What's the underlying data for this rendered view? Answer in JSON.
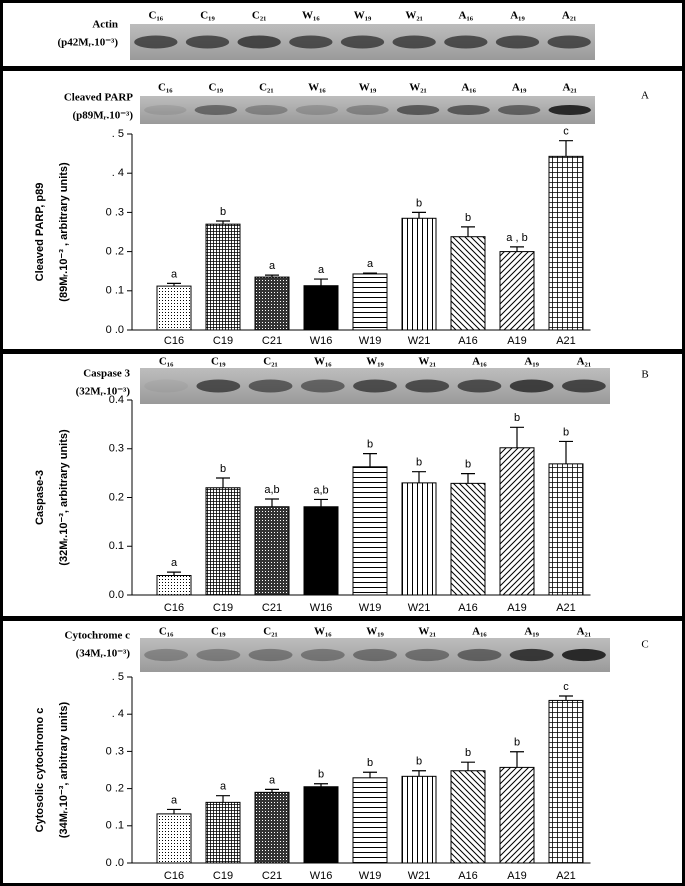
{
  "actin": {
    "label": "Actin",
    "sublabel": "(p42Mᵣ.10⁻³)",
    "lanes": [
      "C₁₆",
      "C₁₉",
      "C₂₁",
      "W₁₆",
      "W₁₉",
      "W₂₁",
      "A₁₆",
      "A₁₉",
      "A₂₁"
    ]
  },
  "chart_data": [
    {
      "type": "bar",
      "panel": "A",
      "blot": {
        "label": "Cleaved PARP",
        "sublabel": "(p89Mᵣ.10⁻³)",
        "lanes": [
          "C₁₆",
          "C₁₉",
          "C₂₁",
          "W₁₆",
          "W₁₉",
          "W₂₁",
          "A₁₆",
          "A₁₉",
          "A₂₁"
        ]
      },
      "ylabel": [
        "Cleaved PARP, p89",
        "(89Mᵣ.10⁻³ , arbitrary units)"
      ],
      "categories": [
        "C16",
        "C19",
        "C21",
        "W16",
        "W19",
        "W21",
        "A16",
        "A19",
        "A21"
      ],
      "values": [
        0.112,
        0.27,
        0.135,
        0.113,
        0.143,
        0.285,
        0.238,
        0.2,
        0.443
      ],
      "errors": [
        0.007,
        0.008,
        0.005,
        0.017,
        0.002,
        0.015,
        0.025,
        0.012,
        0.04
      ],
      "annotations": [
        "a",
        "b",
        "a",
        "a",
        "a",
        "b",
        "b",
        "a , b",
        "c"
      ],
      "ylim": [
        0,
        0.5
      ],
      "yticks": [
        {
          "value": 0,
          "label": "0 .0"
        },
        {
          "value": 0.1,
          "label": "0 .1"
        },
        {
          "value": 0.2,
          "label": "0 .2"
        },
        {
          "value": 0.3,
          "label": "0 .3"
        },
        {
          "value": 0.4,
          "label": ". 4"
        },
        {
          "value": 0.5,
          "label": ". 5"
        }
      ]
    },
    {
      "type": "bar",
      "panel": "B",
      "blot": {
        "label": "Caspase 3",
        "sublabel": "(32Mᵣ.10⁻³)",
        "lanes": [
          "C₁₆",
          "C₁₉",
          "C₂₁",
          "W₁₆",
          "W₁₉",
          "W₂₁",
          "A₁₆",
          "A₁₉",
          "A₂₁"
        ]
      },
      "ylabel": [
        "Caspase-3",
        "(32Mᵣ.10⁻³, arbitrary units)"
      ],
      "categories": [
        "C16",
        "C19",
        "C21",
        "W16",
        "W19",
        "W21",
        "A16",
        "A19",
        "A21"
      ],
      "values": [
        0.04,
        0.22,
        0.181,
        0.181,
        0.263,
        0.23,
        0.229,
        0.302,
        0.269
      ],
      "errors": [
        0.007,
        0.02,
        0.016,
        0.015,
        0.027,
        0.023,
        0.02,
        0.042,
        0.046
      ],
      "annotations": [
        "a",
        "b",
        "a,b",
        "a,b",
        "b",
        "b",
        "b",
        "b",
        "b"
      ],
      "ylim": [
        0,
        0.4
      ],
      "yticks": [
        {
          "value": 0,
          "label": "0.0"
        },
        {
          "value": 0.1,
          "label": "0.1"
        },
        {
          "value": 0.2,
          "label": "0.2"
        },
        {
          "value": 0.3,
          "label": "0.3"
        },
        {
          "value": 0.4,
          "label": "0.4"
        }
      ]
    },
    {
      "type": "bar",
      "panel": "C",
      "blot": {
        "label": "Cytochrome c",
        "sublabel": "(34Mᵣ.10⁻³)",
        "lanes": [
          "C₁₆",
          "C₁₉",
          "C₂₁",
          "W₁₆",
          "W₁₉",
          "W₂₁",
          "A₁₆",
          "A₁₉",
          "A₂₁"
        ]
      },
      "ylabel": [
        "Cytosolic cytochromo c",
        "(34Mᵣ.10⁻³, arbitrary units)"
      ],
      "categories": [
        "C16",
        "C19",
        "C21",
        "W16",
        "W19",
        "W21",
        "A16",
        "A19",
        "A21"
      ],
      "values": [
        0.132,
        0.163,
        0.19,
        0.205,
        0.229,
        0.233,
        0.248,
        0.257,
        0.437
      ],
      "errors": [
        0.012,
        0.018,
        0.008,
        0.008,
        0.015,
        0.015,
        0.023,
        0.042,
        0.012
      ],
      "annotations": [
        "a",
        "a",
        "a",
        "b",
        "b",
        "b",
        "b",
        "b",
        "c"
      ],
      "ylim": [
        0,
        0.5
      ],
      "yticks": [
        {
          "value": 0,
          "label": "0 .0"
        },
        {
          "value": 0.1,
          "label": "0 .1"
        },
        {
          "value": 0.2,
          "label": "0 .2"
        },
        {
          "value": 0.3,
          "label": "0 .3"
        },
        {
          "value": 0.4,
          "label": ". 4"
        },
        {
          "value": 0.5,
          "label": ". 5"
        }
      ]
    }
  ]
}
